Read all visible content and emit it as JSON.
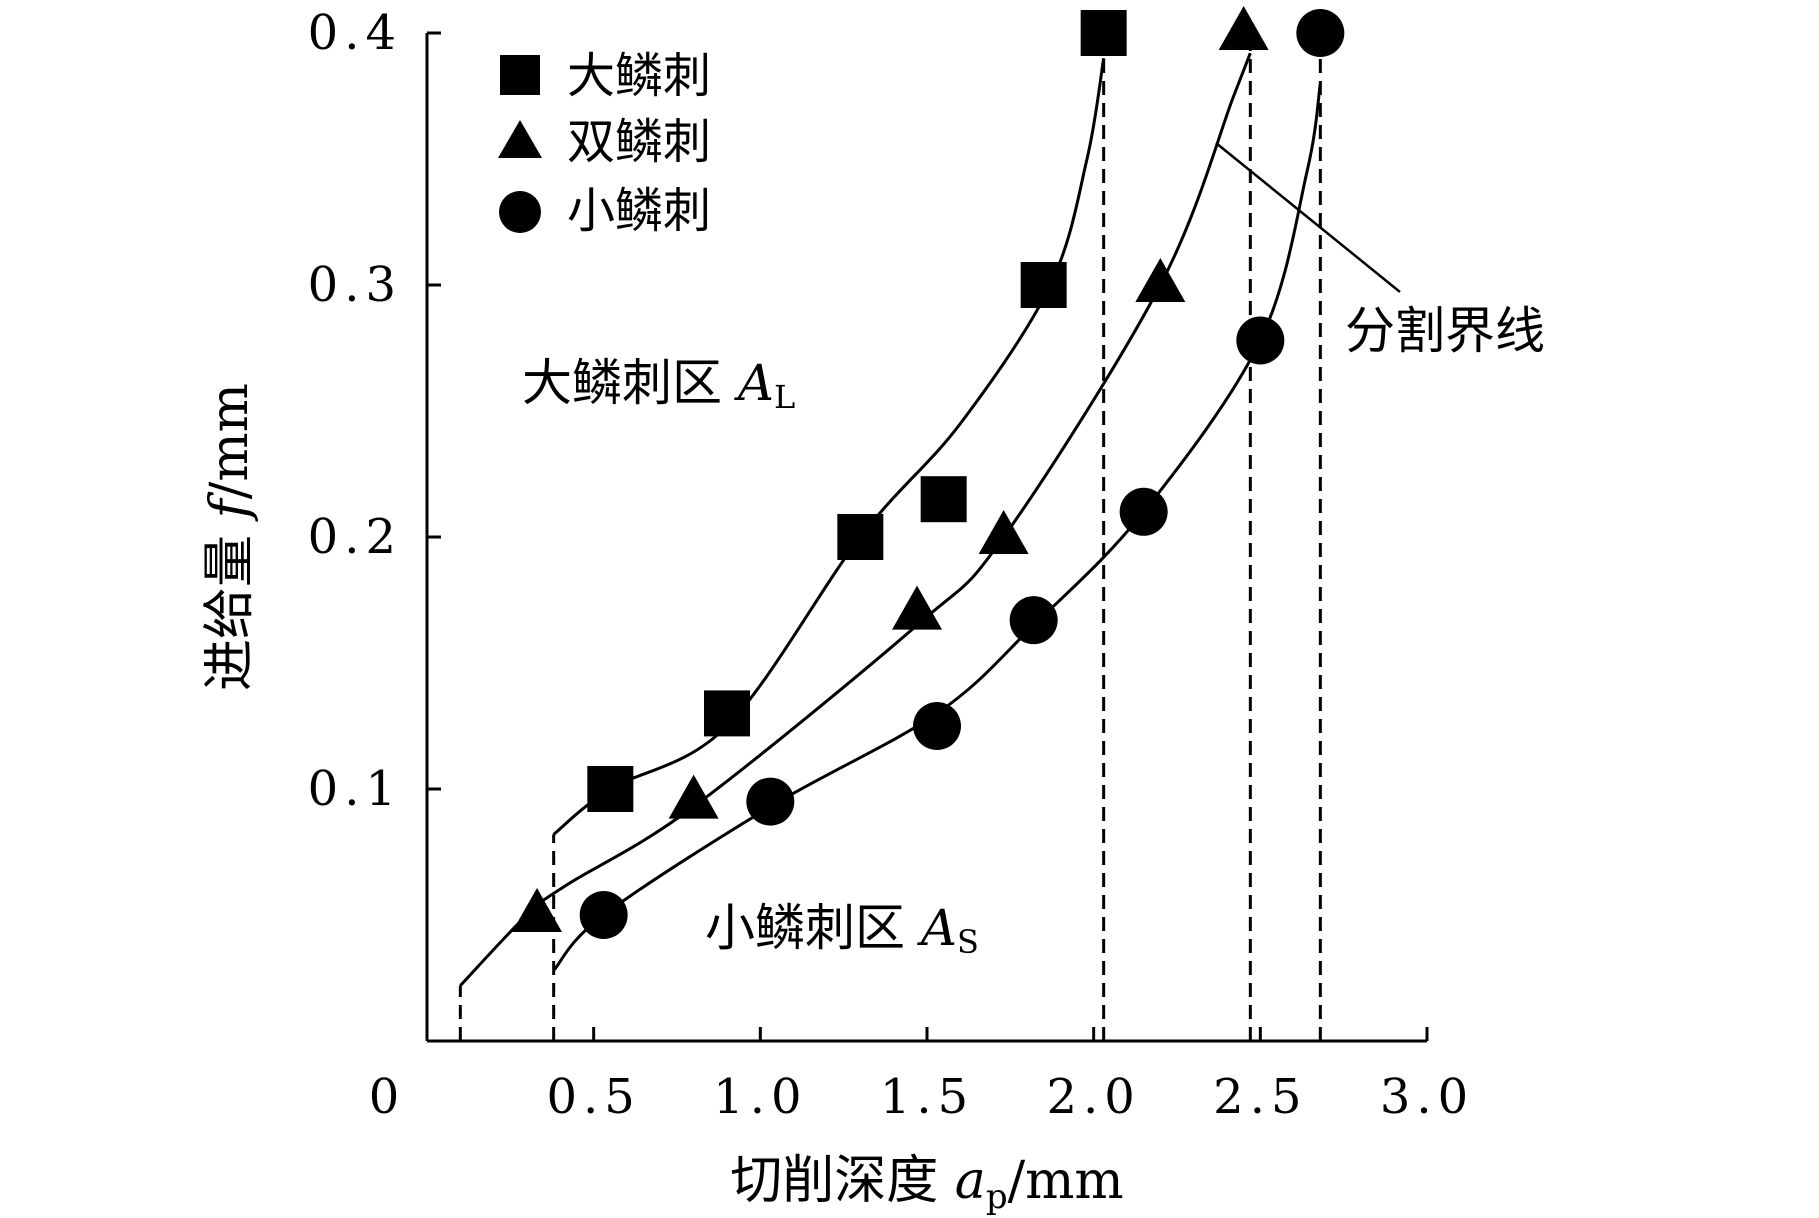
{
  "chart_data": {
    "type": "scatter",
    "xlabel": {
      "prefix": "切削深度 ",
      "symbol": "a",
      "sub": "p",
      "unit": "/mm"
    },
    "ylabel": {
      "prefix": "进给量 ",
      "symbol": "f",
      "unit": "/mm"
    },
    "xlim": [
      0,
      3.0
    ],
    "ylim": [
      0,
      0.4
    ],
    "x_ticks": [
      {
        "value": 0,
        "label": "0"
      },
      {
        "value": 0.5,
        "label": "0.5"
      },
      {
        "value": 1.0,
        "label": "1.0"
      },
      {
        "value": 1.5,
        "label": "1.5"
      },
      {
        "value": 2.0,
        "label": "2.0"
      },
      {
        "value": 2.5,
        "label": "2.5"
      },
      {
        "value": 3.0,
        "label": "3.0"
      }
    ],
    "y_ticks": [
      {
        "value": 0.1,
        "label": "0.1"
      },
      {
        "value": 0.2,
        "label": "0.2"
      },
      {
        "value": 0.3,
        "label": "0.3"
      },
      {
        "value": 0.4,
        "label": "0.4"
      }
    ],
    "grid": false,
    "legend_position": "top-left",
    "series": [
      {
        "name": "大鳞刺",
        "marker": "square",
        "points": [
          [
            0.55,
            0.1
          ],
          [
            0.9,
            0.13
          ],
          [
            1.3,
            0.2
          ],
          [
            1.55,
            0.215
          ],
          [
            1.85,
            0.3
          ],
          [
            2.03,
            0.4
          ]
        ]
      },
      {
        "name": "双鳞刺",
        "marker": "triangle",
        "points": [
          [
            0.33,
            0.05
          ],
          [
            0.8,
            0.095
          ],
          [
            1.47,
            0.17
          ],
          [
            1.73,
            0.2
          ],
          [
            2.2,
            0.3
          ],
          [
            2.45,
            0.4
          ]
        ]
      },
      {
        "name": "小鳞刺",
        "marker": "circle",
        "points": [
          [
            0.53,
            0.05
          ],
          [
            1.03,
            0.095
          ],
          [
            1.53,
            0.125
          ],
          [
            1.82,
            0.167
          ],
          [
            2.15,
            0.21
          ],
          [
            2.5,
            0.278
          ],
          [
            2.68,
            0.4
          ]
        ]
      }
    ],
    "boundary_curves": [
      {
        "points": [
          [
            0.38,
            0.082
          ],
          [
            0.55,
            0.1
          ],
          [
            0.9,
            0.125
          ],
          [
            1.3,
            0.2
          ],
          [
            1.6,
            0.245
          ],
          [
            1.87,
            0.3
          ],
          [
            1.98,
            0.35
          ],
          [
            2.03,
            0.39
          ]
        ]
      },
      {
        "points": [
          [
            0.1,
            0.022
          ],
          [
            0.3,
            0.05
          ],
          [
            0.42,
            0.062
          ],
          [
            0.8,
            0.093
          ],
          [
            1.47,
            0.165
          ],
          [
            1.73,
            0.2
          ],
          [
            2.2,
            0.3
          ],
          [
            2.42,
            0.375
          ],
          [
            2.47,
            0.392
          ]
        ]
      },
      {
        "points": [
          [
            0.38,
            0.028
          ],
          [
            0.53,
            0.05
          ],
          [
            1.03,
            0.093
          ],
          [
            1.53,
            0.13
          ],
          [
            1.82,
            0.165
          ],
          [
            2.15,
            0.21
          ],
          [
            2.5,
            0.278
          ],
          [
            2.64,
            0.345
          ],
          [
            2.68,
            0.38
          ]
        ]
      }
    ],
    "dashed_lines": [
      {
        "x": 0.1,
        "y_top": 0.022
      },
      {
        "x": 0.38,
        "y_top": 0.082
      },
      {
        "x": 2.03,
        "y_top": 0.4
      },
      {
        "x": 2.47,
        "y_top": 0.4
      },
      {
        "x": 2.68,
        "y_top": 0.4
      }
    ],
    "annotations": [
      {
        "name": "large-scale-region-label",
        "text": "大鳞刺区 ",
        "symbol": "A",
        "sub": "L"
      },
      {
        "name": "small-scale-region-label",
        "text": "小鳞刺区 ",
        "symbol": "A",
        "sub": "S"
      },
      {
        "name": "boundary-line-label",
        "text": "分割界线"
      }
    ]
  }
}
